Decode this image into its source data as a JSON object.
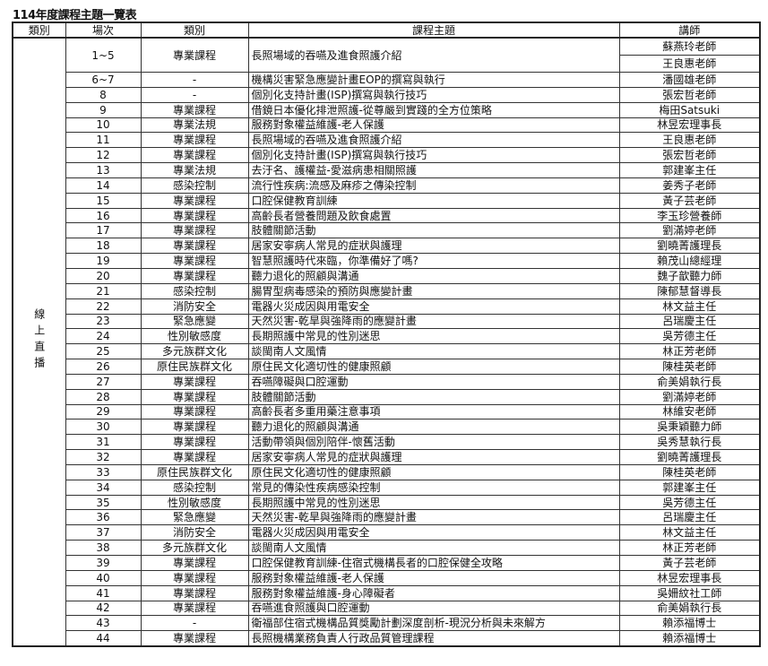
{
  "title": "114年度課程主題一覽表",
  "headers": [
    "類別",
    "場次",
    "類別",
    "課程主題",
    "講師"
  ],
  "group_label": "線上直播",
  "first_row": {
    "session": "1~5",
    "category": "專業課程",
    "topic": "長照場域的吞嚥及進食照護介紹",
    "instructors": [
      "蘇燕玲老師",
      "王良惠老師"
    ]
  },
  "rows": [
    [
      "6~7",
      "-",
      "機構災害緊急應變計畫EOP的撰寫與執行",
      "潘國雄老師"
    ],
    [
      "8",
      "-",
      "個別化支持計畫(ISP)撰寫與執行技巧",
      "張宏哲老師"
    ],
    [
      "9",
      "專業課程",
      "借鏡日本優化排泄照護-從尊嚴到實踐的全方位策略",
      "梅田Satsuki"
    ],
    [
      "10",
      "專業法規",
      "服務對象權益維護-老人保護",
      "林昱宏理事長"
    ],
    [
      "11",
      "專業課程",
      "長照場域的吞嚥及進食照護介紹",
      "王良惠老師"
    ],
    [
      "12",
      "專業課程",
      "個別化支持計畫(ISP)撰寫與執行技巧",
      "張宏哲老師"
    ],
    [
      "13",
      "專業法規",
      "去汙名、護權益-愛滋病患相關照護",
      "郭建峯主任"
    ],
    [
      "14",
      "感染控制",
      "流行性疾病:流感及麻疹之傳染控制",
      "姜秀子老師"
    ],
    [
      "15",
      "專業課程",
      "口腔保健教育訓練",
      "黃子芸老師"
    ],
    [
      "16",
      "專業課程",
      "高齡長者營養問題及飲食處置",
      "李玉珍營養師"
    ],
    [
      "17",
      "專業課程",
      "肢體關節活動",
      "劉滿婷老師"
    ],
    [
      "18",
      "專業課程",
      "居家安寧病人常見的症狀與護理",
      "劉曉菁護理長"
    ],
    [
      "19",
      "專業課程",
      "智慧照護時代來臨，你準備好了嗎?",
      "賴茂山總經理"
    ],
    [
      "20",
      "專業課程",
      "聽力退化的照顧與溝通",
      "魏子歆聽力師"
    ],
    [
      "21",
      "感染控制",
      "腸胃型病毒感染的預防與應變計畫",
      "陳郁慧督導長"
    ],
    [
      "22",
      "消防安全",
      "電器火災成因與用電安全",
      "林文益主任"
    ],
    [
      "23",
      "緊急應變",
      "天然災害-乾旱與強降雨的應變計畫",
      "呂瑞慶主任"
    ],
    [
      "24",
      "性別敏感度",
      "長期照護中常見的性別迷思",
      "吳芳德主任"
    ],
    [
      "25",
      "多元族群文化",
      "談閩南人文風情",
      "林正芳老師"
    ],
    [
      "26",
      "原住民族群文化",
      "原住民文化適切性的健康照顧",
      "陳桂英老師"
    ],
    [
      "27",
      "專業課程",
      "吞嚥障礙與口腔運動",
      "俞美娟執行長"
    ],
    [
      "28",
      "專業課程",
      "肢體關節活動",
      "劉滿婷老師"
    ],
    [
      "29",
      "專業課程",
      "高齡長者多重用藥注意事項",
      "林維安老師"
    ],
    [
      "30",
      "專業課程",
      "聽力退化的照顧與溝通",
      "吳秉穎聽力師"
    ],
    [
      "31",
      "專業課程",
      "活動帶領與個別陪伴-懷舊活動",
      "吳秀慧執行長"
    ],
    [
      "32",
      "專業課程",
      "居家安寧病人常見的症狀與護理",
      "劉曉菁護理長"
    ],
    [
      "33",
      "原住民族群文化",
      "原住民文化適切性的健康照顧",
      "陳桂英老師"
    ],
    [
      "34",
      "感染控制",
      "常見的傳染性疾病感染控制",
      "郭建峯主任"
    ],
    [
      "35",
      "性別敏感度",
      "長期照護中常見的性別迷思",
      "吳芳德主任"
    ],
    [
      "36",
      "緊急應變",
      "天然災害-乾旱與強降雨的應變計畫",
      "呂瑞慶主任"
    ],
    [
      "37",
      "消防安全",
      "電器火災成因與用電安全",
      "林文益主任"
    ],
    [
      "38",
      "多元族群文化",
      "談閩南人文風情",
      "林正芳老師"
    ],
    [
      "39",
      "專業課程",
      "口腔保健教育訓練-住宿式機構長者的口腔保健全攻略",
      "黃子芸老師"
    ],
    [
      "40",
      "專業課程",
      "服務對象權益維護-老人保護",
      "林昱宏理事長"
    ],
    [
      "41",
      "專業課程",
      "服務對象權益維護-身心障礙者",
      "吳姍紋社工師"
    ],
    [
      "42",
      "專業課程",
      "吞嚥進食照護與口腔運動",
      "俞美娟執行長"
    ],
    [
      "43",
      "-",
      "衛福部住宿式機構品質獎勵計劃深度剖析-現況分析與未來解方",
      "賴添福博士"
    ],
    [
      "44",
      "專業課程",
      "長照機構業務負責人行政品質管理課程",
      "賴添福博士"
    ]
  ]
}
